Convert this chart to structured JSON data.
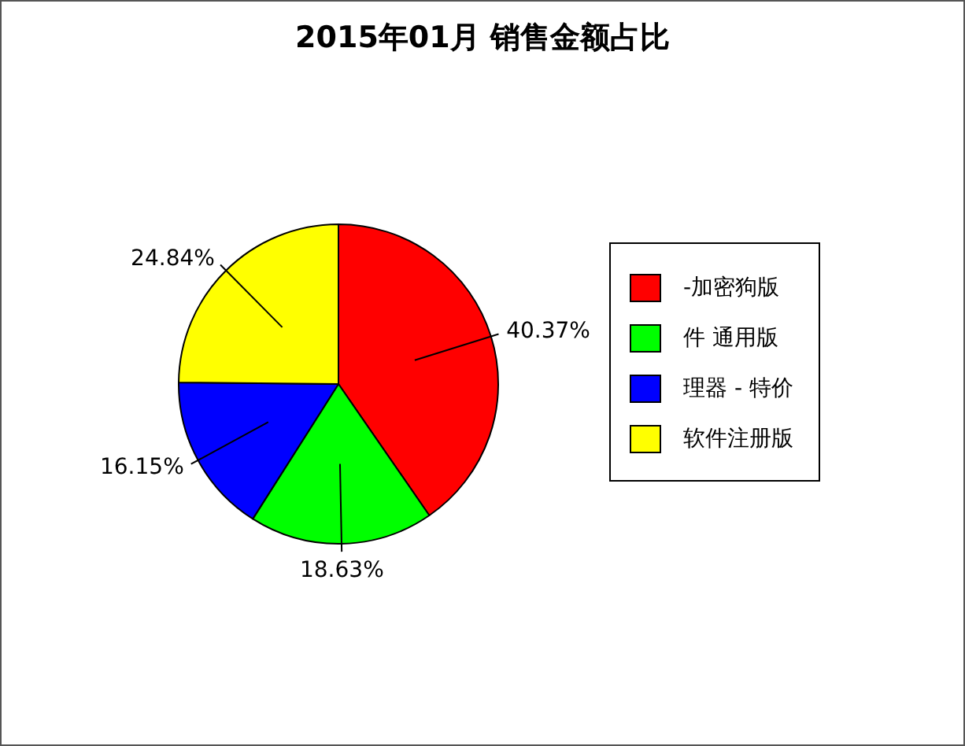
{
  "chart_data": {
    "type": "pie",
    "title": "2015年01月 销售金额占比",
    "categories": [
      "-加密狗版",
      "件 通用版",
      "理器 - 特价",
      "软件注册版"
    ],
    "values": [
      40.37,
      18.63,
      16.15,
      24.84
    ],
    "colors": [
      "#ff0000",
      "#00ff00",
      "#0000ff",
      "#ffff00"
    ],
    "value_labels": [
      "40.37%",
      "18.63%",
      "16.15%",
      "24.84%"
    ],
    "legend": "right"
  }
}
